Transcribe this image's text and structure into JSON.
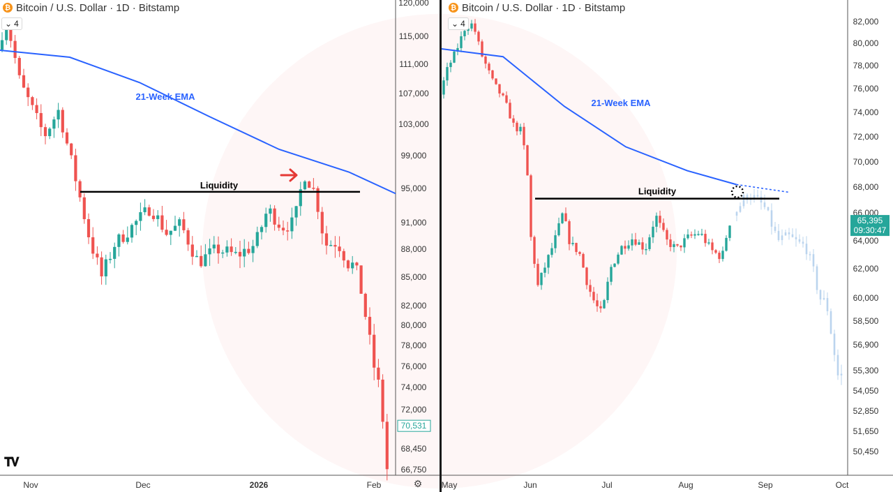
{
  "panels": [
    {
      "header": {
        "title": "Bitcoin / U.S. Dollar · 1D · Bitstamp",
        "icon": "bitcoin-icon",
        "badge": "4"
      },
      "ema_label": "21-Week EMA",
      "liquidity_label": "Liquidity",
      "x_ticks": [
        "Nov",
        "Dec",
        "2026",
        "Feb"
      ],
      "y_ticks": [
        "120,000",
        "115,000",
        "111,000",
        "107,000",
        "103,000",
        "99,000",
        "95,000",
        "91,000",
        "88,000",
        "85,000",
        "82,000",
        "80,000",
        "78,000",
        "76,000",
        "74,000",
        "72,000",
        "68,450",
        "66,750"
      ],
      "price_tag": "70,531"
    },
    {
      "header": {
        "title": "Bitcoin / U.S. Dollar · 1D · Bitstamp",
        "icon": "bitcoin-icon",
        "badge": "4"
      },
      "ema_label": "21-Week EMA",
      "liquidity_label": "Liquidity",
      "x_ticks": [
        "May",
        "Jun",
        "Jul",
        "Aug",
        "Sep",
        "Oct"
      ],
      "y_ticks": [
        "82,000",
        "80,000",
        "78,000",
        "76,000",
        "74,000",
        "72,000",
        "70,000",
        "68,000",
        "66,000",
        "64,000",
        "62,000",
        "60,000",
        "58,500",
        "56,900",
        "55,300",
        "54,050",
        "52,850",
        "51,650",
        "50,450"
      ],
      "price_tag": "65,395",
      "price_timer": "09:30:47"
    }
  ],
  "colors": {
    "up": "#26a69a",
    "down": "#ef5350",
    "ema": "#2962ff",
    "projection": "#bbd4ee",
    "accent_arrow": "#e53935"
  },
  "chart_data": [
    {
      "type": "candlestick",
      "title": "Bitcoin / U.S. Dollar · 1D · Bitstamp",
      "x_ticks": [
        "Nov",
        "Dec",
        "2026",
        "Feb"
      ],
      "y_ticks": [
        120000,
        115000,
        111000,
        107000,
        103000,
        99000,
        95000,
        91000,
        88000,
        85000,
        82000,
        80000,
        78000,
        76000,
        74000,
        72000,
        68450,
        66750
      ],
      "series": [
        {
          "name": "21-Week EMA",
          "type": "line",
          "approx_points": [
            [
              0,
              113000
            ],
            [
              100,
              112000
            ],
            [
              200,
              108500
            ],
            [
              300,
              104000
            ],
            [
              400,
              99800
            ],
            [
              500,
              97000
            ],
            [
              567,
              94400
            ]
          ]
        }
      ],
      "liquidity_level": 94600,
      "last_price": 70531
    },
    {
      "type": "candlestick",
      "title": "Bitcoin / U.S. Dollar · 1D · Bitstamp",
      "x_ticks": [
        "May",
        "Jun",
        "Jul",
        "Aug",
        "Sep",
        "Oct"
      ],
      "y_ticks": [
        82000,
        80000,
        78000,
        76000,
        74000,
        72000,
        70000,
        68000,
        66000,
        64000,
        62000,
        60000,
        58500,
        56900,
        55300,
        54050,
        52850,
        51650,
        50450
      ],
      "series": [
        {
          "name": "21-Week EMA",
          "type": "line",
          "approx_points": [
            [
              0,
              79500
            ],
            [
              100,
              78800
            ],
            [
              200,
              74500
            ],
            [
              300,
              71200
            ],
            [
              400,
              69300
            ],
            [
              480,
              68200
            ]
          ]
        }
      ],
      "liquidity_level": 67100,
      "last_price": 65395
    }
  ]
}
